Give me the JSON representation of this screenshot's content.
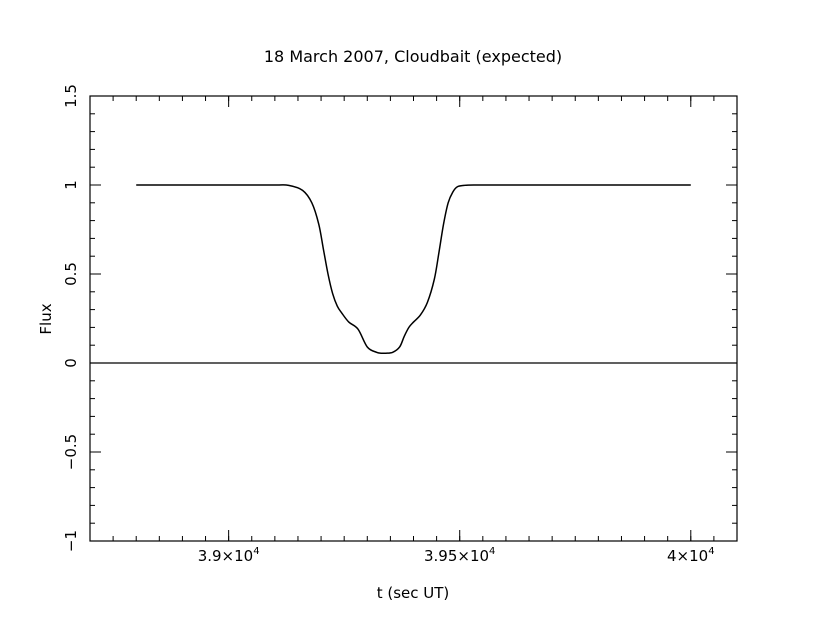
{
  "chart_data": {
    "type": "line",
    "title": "18 March 2007, Cloudbait (expected)",
    "xlabel": "t (sec UT)",
    "ylabel": "Flux",
    "xlim": [
      38700,
      40100
    ],
    "ylim": [
      -1,
      1.5
    ],
    "x_ticks": [
      {
        "value": 39000,
        "mantissa": "3.9×10",
        "exponent": "4"
      },
      {
        "value": 39500,
        "mantissa": "3.95×10",
        "exponent": "4"
      },
      {
        "value": 40000,
        "mantissa": "4×10",
        "exponent": "4"
      }
    ],
    "y_ticks": [
      {
        "value": -1,
        "label": "−1"
      },
      {
        "value": -0.5,
        "label": "−0.5"
      },
      {
        "value": 0,
        "label": "0"
      },
      {
        "value": 0.5,
        "label": "0.5"
      },
      {
        "value": 1,
        "label": "1"
      },
      {
        "value": 1.5,
        "label": "1.5"
      }
    ],
    "zero_line": true,
    "series": [
      {
        "x": [
          38800,
          39000,
          39100,
          39130,
          39160,
          39180,
          39195,
          39205,
          39215,
          39225,
          39235,
          39245,
          39260,
          39280,
          39300,
          39320,
          39330,
          39340,
          39355,
          39370,
          39380,
          39390,
          39400,
          39415,
          39430,
          39445,
          39455,
          39465,
          39475,
          39485,
          39495,
          39510,
          39530,
          39600,
          40000
        ],
        "y": [
          1.0,
          1.0,
          1.0,
          0.998,
          0.97,
          0.9,
          0.78,
          0.64,
          0.5,
          0.39,
          0.32,
          0.28,
          0.23,
          0.19,
          0.09,
          0.06,
          0.055,
          0.055,
          0.06,
          0.09,
          0.15,
          0.2,
          0.23,
          0.27,
          0.34,
          0.47,
          0.62,
          0.78,
          0.9,
          0.96,
          0.99,
          0.998,
          1.0,
          1.0,
          1.0
        ]
      }
    ]
  }
}
